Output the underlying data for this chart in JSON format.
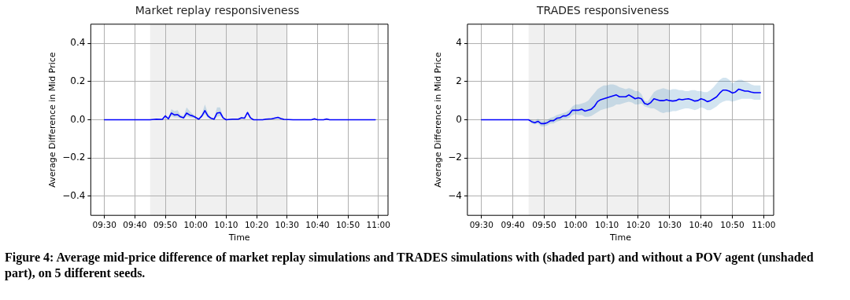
{
  "chart_data": [
    {
      "type": "line",
      "title": "Market replay responsiveness",
      "xlabel": "Time",
      "ylabel": "Average Difference in Mid Price",
      "xlim": [
        9.425,
        11.053
      ],
      "ylim": [
        -0.5,
        0.5
      ],
      "xticks": [
        {
          "value": 9.5,
          "label": "09:30"
        },
        {
          "value": 9.6667,
          "label": "09:40"
        },
        {
          "value": 9.8333,
          "label": "09:50"
        },
        {
          "value": 10,
          "label": "10:00"
        },
        {
          "value": 10.1667,
          "label": "10:10"
        },
        {
          "value": 10.3333,
          "label": "10:20"
        },
        {
          "value": 10.5,
          "label": "10:30"
        },
        {
          "value": 10.6667,
          "label": "10:40"
        },
        {
          "value": 10.8333,
          "label": "10:50"
        },
        {
          "value": 11,
          "label": "11:00"
        }
      ],
      "yticks": [
        {
          "value": -0.4,
          "label": "−0.4"
        },
        {
          "value": -0.2,
          "label": "−0.2"
        },
        {
          "value": 0,
          "label": "0.0"
        },
        0.2,
        0.4
      ],
      "grid": true,
      "legend": false,
      "marker": "none",
      "line_style": "solid",
      "bands": [
        {
          "axis": "x",
          "from": 9.75,
          "to": 10.5,
          "color": "#f0f0f0"
        }
      ],
      "series": [
        {
          "color": "#0000ff",
          "x": [
            9.5,
            9.75,
            9.7833,
            9.8167,
            9.8333,
            9.85,
            9.8667,
            9.8833,
            9.9,
            9.9167,
            9.9333,
            9.95,
            9.9667,
            9.9833,
            10.0,
            10.0167,
            10.0333,
            10.05,
            10.0667,
            10.0833,
            10.1,
            10.1167,
            10.1333,
            10.15,
            10.1667,
            10.2,
            10.2333,
            10.25,
            10.2667,
            10.2833,
            10.3,
            10.3167,
            10.3667,
            10.3833,
            10.4167,
            10.45,
            10.4667,
            10.4833,
            10.5333,
            10.6333,
            10.65,
            10.6667,
            10.7,
            10.7167,
            10.7333,
            10.9833
          ],
          "values": [
            0,
            0,
            0.003,
            0.002,
            0.02,
            0.005,
            0.035,
            0.025,
            0.027,
            0.015,
            0.01,
            0.035,
            0.025,
            0.02,
            0.012,
            0.003,
            0.02,
            0.048,
            0.02,
            0.008,
            0.003,
            0.035,
            0.038,
            0.01,
            0,
            0.003,
            0.003,
            0.01,
            0.008,
            0.038,
            0.01,
            0,
            0,
            0.003,
            0.005,
            0.012,
            0.006,
            0.002,
            0,
            0,
            0.005,
            0,
            0,
            0.004,
            0,
            0
          ],
          "upper": [
            0,
            0,
            0.004,
            0.003,
            0.025,
            0.01,
            0.055,
            0.045,
            0.05,
            0.025,
            0.02,
            0.065,
            0.045,
            0.03,
            0.018,
            0.006,
            0.03,
            0.08,
            0.035,
            0.012,
            0.006,
            0.065,
            0.065,
            0.015,
            0.002,
            0.005,
            0.006,
            0.015,
            0.012,
            0.045,
            0.015,
            0.002,
            0.002,
            0.005,
            0.008,
            0.016,
            0.01,
            0.004,
            0.002,
            0.002,
            0.007,
            0.002,
            0.002,
            0.006,
            0.002,
            0
          ],
          "lower": [
            0,
            0,
            0.002,
            0.001,
            0.015,
            0.002,
            0.02,
            0.012,
            0.012,
            0.008,
            0.004,
            0.018,
            0.012,
            0.01,
            0.006,
            0.001,
            0.012,
            0.03,
            0.01,
            0.004,
            0.001,
            0.015,
            0.02,
            0.006,
            0,
            0.001,
            0.001,
            0.006,
            0.005,
            0.03,
            0.006,
            0,
            0,
            0.001,
            0.002,
            0.008,
            0.003,
            0.001,
            0,
            0,
            0.003,
            0,
            0,
            0.002,
            0,
            0
          ]
        }
      ]
    },
    {
      "type": "line",
      "title": "TRADES responsiveness",
      "xlabel": "Time",
      "ylabel": "Average Difference in Mid Price",
      "xlim": [
        9.425,
        11.053
      ],
      "ylim": [
        -5,
        5
      ],
      "xticks": [
        {
          "value": 9.5,
          "label": "09:30"
        },
        {
          "value": 9.6667,
          "label": "09:40"
        },
        {
          "value": 9.8333,
          "label": "09:50"
        },
        {
          "value": 10,
          "label": "10:00"
        },
        {
          "value": 10.1667,
          "label": "10:10"
        },
        {
          "value": 10.3333,
          "label": "10:20"
        },
        {
          "value": 10.5,
          "label": "10:30"
        },
        {
          "value": 10.6667,
          "label": "10:40"
        },
        {
          "value": 10.8333,
          "label": "10:50"
        },
        {
          "value": 11,
          "label": "11:00"
        }
      ],
      "yticks": [
        {
          "value": -4,
          "label": "−4"
        },
        {
          "value": -2,
          "label": "−2"
        },
        0,
        2,
        4
      ],
      "grid": true,
      "legend": false,
      "marker": "none",
      "line_style": "solid",
      "bands": [
        {
          "axis": "x",
          "from": 9.75,
          "to": 10.5,
          "color": "#f0f0f0"
        }
      ],
      "series": [
        {
          "color": "#0000ff",
          "x": [
            9.5,
            9.75,
            9.7667,
            9.7833,
            9.8,
            9.8167,
            9.8333,
            9.85,
            9.8667,
            9.8833,
            9.9,
            9.9167,
            9.9333,
            9.95,
            9.9667,
            9.9833,
            10.0,
            10.0167,
            10.0333,
            10.05,
            10.0667,
            10.0833,
            10.1,
            10.1167,
            10.1333,
            10.15,
            10.1667,
            10.1833,
            10.2,
            10.2167,
            10.2333,
            10.25,
            10.2667,
            10.2833,
            10.3,
            10.3167,
            10.3333,
            10.35,
            10.3667,
            10.3833,
            10.4,
            10.4167,
            10.4333,
            10.45,
            10.4667,
            10.4833,
            10.5,
            10.5167,
            10.5333,
            10.55,
            10.5667,
            10.5833,
            10.6,
            10.6167,
            10.6333,
            10.65,
            10.6667,
            10.6833,
            10.7,
            10.7167,
            10.7333,
            10.75,
            10.7667,
            10.7833,
            10.8,
            10.8167,
            10.8333,
            10.85,
            10.8667,
            10.8833,
            10.9,
            10.9167,
            10.9333,
            10.95,
            10.9667,
            10.9833
          ],
          "values": [
            0,
            0,
            -0.1,
            -0.15,
            -0.08,
            -0.2,
            -0.2,
            -0.15,
            -0.05,
            -0.05,
            0.08,
            0.1,
            0.2,
            0.2,
            0.3,
            0.5,
            0.5,
            0.5,
            0.55,
            0.45,
            0.5,
            0.55,
            0.7,
            0.95,
            1.05,
            1.1,
            1.15,
            1.2,
            1.25,
            1.3,
            1.2,
            1.2,
            1.2,
            1.3,
            1.2,
            1.1,
            1.15,
            1.1,
            0.85,
            0.8,
            0.9,
            1.1,
            1.05,
            1.0,
            1.0,
            1.05,
            1.0,
            0.98,
            1.0,
            1.08,
            1.05,
            1.08,
            1.1,
            1.05,
            0.98,
            1.0,
            1.1,
            1.05,
            0.95,
            1.0,
            1.1,
            1.2,
            1.4,
            1.55,
            1.55,
            1.5,
            1.4,
            1.45,
            1.6,
            1.55,
            1.5,
            1.5,
            1.45,
            1.42,
            1.42,
            1.42
          ],
          "upper": [
            0,
            0,
            0,
            -0.05,
            0.05,
            -0.05,
            -0.05,
            0,
            0.1,
            0.15,
            0.25,
            0.3,
            0.35,
            0.4,
            0.5,
            0.7,
            0.8,
            0.8,
            0.85,
            0.9,
            1.0,
            1.2,
            1.4,
            1.6,
            1.7,
            1.8,
            1.8,
            1.85,
            1.85,
            1.8,
            1.7,
            1.65,
            1.6,
            1.65,
            1.6,
            1.5,
            1.5,
            1.35,
            1.0,
            0.95,
            1.2,
            1.45,
            1.55,
            1.6,
            1.65,
            1.6,
            1.55,
            1.6,
            1.6,
            1.55,
            1.55,
            1.5,
            1.5,
            1.55,
            1.55,
            1.5,
            1.5,
            1.45,
            1.45,
            1.55,
            1.7,
            1.9,
            2.1,
            2.2,
            2.2,
            2.1,
            1.9,
            2.0,
            2.1,
            2.1,
            2.0,
            1.95,
            1.85,
            1.8,
            1.8,
            1.8
          ],
          "lower": [
            0,
            0,
            -0.2,
            -0.25,
            -0.2,
            -0.35,
            -0.35,
            -0.3,
            -0.2,
            -0.2,
            -0.1,
            -0.05,
            0.05,
            0.05,
            0.1,
            0.25,
            0.3,
            0.25,
            0.25,
            0.15,
            0.15,
            0.2,
            0.3,
            0.4,
            0.5,
            0.55,
            0.6,
            0.65,
            0.7,
            0.8,
            0.8,
            0.85,
            0.9,
            0.95,
            0.9,
            0.8,
            0.8,
            0.85,
            0.7,
            0.65,
            0.6,
            0.6,
            0.5,
            0.4,
            0.35,
            0.4,
            0.4,
            0.45,
            0.45,
            0.5,
            0.55,
            0.6,
            0.6,
            0.55,
            0.5,
            0.55,
            0.65,
            0.6,
            0.5,
            0.5,
            0.6,
            0.7,
            0.85,
            0.95,
            1.0,
            1.0,
            0.95,
            1.0,
            1.05,
            1.1,
            1.1,
            1.1,
            1.1,
            1.05,
            1.05,
            1.05
          ]
        }
      ]
    },
    {
      "type": "other",
      "annotations": [
        "Figure 4: Average mid-price difference of market replay simulations and TRADES simulations with (shaded part) and without a POV agent (unshaded part), on 5 different seeds."
      ]
    }
  ]
}
